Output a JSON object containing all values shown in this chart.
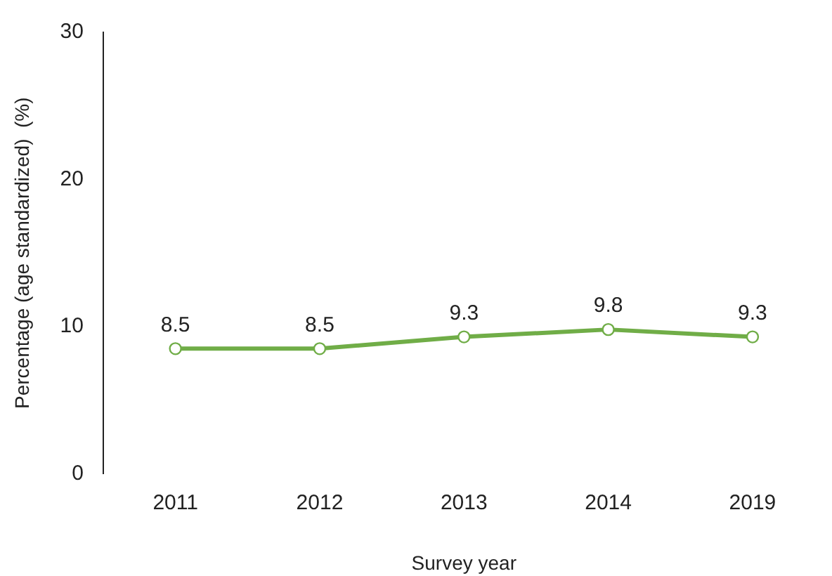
{
  "chart_data": {
    "type": "line",
    "xlabel": "Survey year",
    "ylabel": "Percentage (age standardized)  (%)",
    "categories": [
      "2011",
      "2012",
      "2013",
      "2014",
      "2019"
    ],
    "series": [
      {
        "color": "#70ad47",
        "values": [
          8.5,
          8.5,
          9.3,
          9.8,
          9.3
        ]
      }
    ],
    "ylim": [
      0,
      30
    ],
    "yticks": [
      0,
      10,
      20,
      30
    ],
    "grid": false,
    "legend": false,
    "marker": "circle",
    "line_style": "solid",
    "data_labels": true
  }
}
